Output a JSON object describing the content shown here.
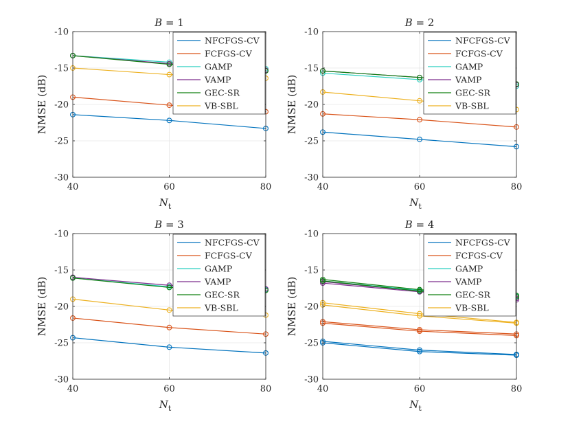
{
  "colors": {
    "NFCFGS-CV": "#0072BD",
    "FCFGS-CV": "#D95319",
    "GAMP": "#2ACFC0",
    "VAMP": "#7E2F8E",
    "GEC-SR": "#118011",
    "VB-SBL": "#EDB120"
  },
  "chart_data": [
    {
      "type": "line",
      "title": "B = 1",
      "title_var": "B",
      "title_value": "1",
      "xlabel": "N",
      "xlabel_sub": "t",
      "ylabel": "NMSE (dB)",
      "xlim": [
        40,
        80
      ],
      "ylim": [
        -30,
        -10
      ],
      "xticks": [
        "40",
        "60",
        "80"
      ],
      "yticks": [
        "-10",
        "-15",
        "-20",
        "-25",
        "-30"
      ],
      "grid": true,
      "legend_position": "top-right",
      "x": [
        40,
        60,
        80
      ],
      "series": [
        {
          "name": "NFCFGS-CV",
          "values": [
            -21.4,
            -22.2,
            -23.3
          ]
        },
        {
          "name": "FCFGS-CV",
          "values": [
            -19.0,
            -20.1,
            -21.0
          ]
        },
        {
          "name": "GAMP",
          "values": [
            -13.3,
            -14.2,
            -15.1
          ]
        },
        {
          "name": "VAMP",
          "values": [
            -13.3,
            -14.4,
            -15.3
          ]
        },
        {
          "name": "GEC-SR",
          "values": [
            -13.3,
            -14.5,
            -15.4
          ]
        },
        {
          "name": "VB-SBL",
          "values": [
            -15.0,
            -15.9,
            -16.4
          ]
        }
      ]
    },
    {
      "type": "line",
      "title": "B = 2",
      "title_var": "B",
      "title_value": "2",
      "xlabel": "N",
      "xlabel_sub": "t",
      "ylabel": "NMSE (dB)",
      "xlim": [
        40,
        80
      ],
      "ylim": [
        -30,
        -10
      ],
      "xticks": [
        "40",
        "60",
        "80"
      ],
      "yticks": [
        "-10",
        "-15",
        "-20",
        "-25",
        "-30"
      ],
      "grid": true,
      "legend_position": "top-right",
      "x": [
        40,
        60,
        80
      ],
      "series": [
        {
          "name": "NFCFGS-CV",
          "values": [
            -23.8,
            -24.8,
            -25.8
          ]
        },
        {
          "name": "FCFGS-CV",
          "values": [
            -21.3,
            -22.1,
            -23.1
          ]
        },
        {
          "name": "GAMP",
          "values": [
            -15.7,
            -16.6,
            -17.5
          ]
        },
        {
          "name": "VAMP",
          "values": [
            -15.4,
            -16.3,
            -17.3
          ]
        },
        {
          "name": "GEC-SR",
          "values": [
            -15.4,
            -16.3,
            -17.2
          ]
        },
        {
          "name": "VB-SBL",
          "values": [
            -18.3,
            -19.5,
            -20.7
          ]
        }
      ]
    },
    {
      "type": "line",
      "title": "B = 3",
      "title_var": "B",
      "title_value": "3",
      "xlabel": "N",
      "xlabel_sub": "t",
      "ylabel": "NMSE (dB)",
      "xlim": [
        40,
        80
      ],
      "ylim": [
        -30,
        -10
      ],
      "xticks": [
        "40",
        "60",
        "80"
      ],
      "yticks": [
        "-10",
        "-15",
        "-20",
        "-25",
        "-30"
      ],
      "grid": true,
      "legend_position": "top-right",
      "x": [
        40,
        60,
        80
      ],
      "series": [
        {
          "name": "NFCFGS-CV",
          "values": [
            -24.3,
            -25.6,
            -26.4
          ]
        },
        {
          "name": "FCFGS-CV",
          "values": [
            -21.6,
            -22.9,
            -23.8
          ]
        },
        {
          "name": "GAMP",
          "values": [
            -16.1,
            -17.3,
            -17.7
          ]
        },
        {
          "name": "VAMP",
          "values": [
            -16.0,
            -17.1,
            -17.6
          ]
        },
        {
          "name": "GEC-SR",
          "values": [
            -16.1,
            -17.4,
            -17.8
          ]
        },
        {
          "name": "VB-SBL",
          "values": [
            -19.0,
            -20.5,
            -21.2
          ]
        }
      ]
    },
    {
      "type": "line",
      "title": "B = 4",
      "title_var": "B",
      "title_value": "4",
      "xlabel": "N",
      "xlabel_sub": "t",
      "ylabel": "NMSE (dB)",
      "xlim": [
        40,
        80
      ],
      "ylim": [
        -30,
        -10
      ],
      "xticks": [
        "40",
        "60",
        "80"
      ],
      "yticks": [
        "-10",
        "-15",
        "-20",
        "-25",
        "-30"
      ],
      "grid": true,
      "legend_position": "top-right",
      "x": [
        40,
        60,
        80
      ],
      "series": [
        {
          "name": "NFCFGS-CV",
          "values": [
            -24.8,
            -26.0,
            -26.6
          ]
        },
        {
          "name": "NFCFGS-CV",
          "values": [
            -25.0,
            -26.2,
            -26.7
          ]
        },
        {
          "name": "FCFGS-CV",
          "values": [
            -22.1,
            -23.2,
            -23.8
          ]
        },
        {
          "name": "FCFGS-CV",
          "values": [
            -22.3,
            -23.4,
            -24.0
          ]
        },
        {
          "name": "GAMP",
          "values": [
            -16.5,
            -17.8,
            -18.6
          ]
        },
        {
          "name": "VAMP",
          "values": [
            -16.8,
            -18.0,
            -19.1
          ]
        },
        {
          "name": "VAMP",
          "values": [
            -16.6,
            -17.9,
            -18.9
          ]
        },
        {
          "name": "GEC-SR",
          "values": [
            -16.3,
            -17.7,
            -18.5
          ]
        },
        {
          "name": "GEC-SR",
          "values": [
            -16.5,
            -17.9,
            -18.7
          ]
        },
        {
          "name": "VB-SBL",
          "values": [
            -19.5,
            -21.0,
            -22.2
          ]
        },
        {
          "name": "VB-SBL",
          "values": [
            -19.8,
            -21.3,
            -22.3
          ]
        }
      ]
    }
  ]
}
